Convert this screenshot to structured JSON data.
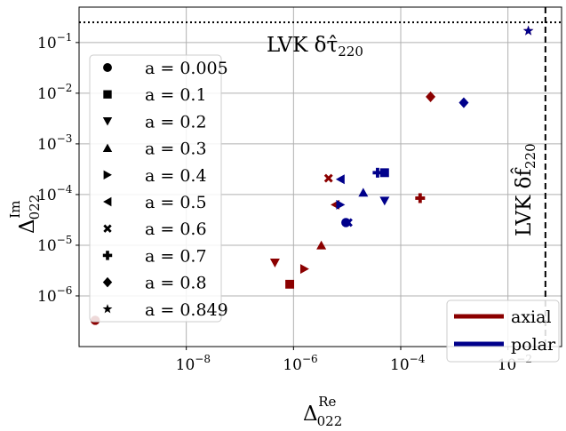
{
  "chart_data": {
    "type": "scatter",
    "title": "",
    "x_scale": "log",
    "y_scale": "log",
    "xlim": [
      1e-10,
      0.1
    ],
    "ylim": [
      1e-07,
      0.5
    ],
    "x_ticks": [
      {
        "value": 1e-08,
        "base": "10",
        "exp": "−8"
      },
      {
        "value": 1e-06,
        "base": "10",
        "exp": "−6"
      },
      {
        "value": 0.0001,
        "base": "10",
        "exp": "−4"
      },
      {
        "value": 0.01,
        "base": "10",
        "exp": "−2"
      }
    ],
    "y_ticks": [
      {
        "value": 1e-06,
        "base": "10",
        "exp": "−6"
      },
      {
        "value": 1e-05,
        "base": "10",
        "exp": "−5"
      },
      {
        "value": 0.0001,
        "base": "10",
        "exp": "−4"
      },
      {
        "value": 0.001,
        "base": "10",
        "exp": "−3"
      },
      {
        "value": 0.01,
        "base": "10",
        "exp": "−2"
      },
      {
        "value": 0.1,
        "base": "10",
        "exp": "−1"
      }
    ],
    "xlabel": {
      "main": "Δ",
      "sub": "022",
      "sup": "Re"
    },
    "ylabel": {
      "main": "Δ",
      "sub": "022",
      "sup": "Im"
    },
    "grid": true,
    "reference_lines": [
      {
        "orientation": "horizontal",
        "value": 0.25,
        "style": "dotted",
        "label": "LVK δτ̂",
        "label_sub": "220"
      },
      {
        "orientation": "vertical",
        "value": 0.05,
        "style": "dashed",
        "label": "LVK δf̂",
        "label_sub": "220"
      }
    ],
    "marker_legend": {
      "placement": "left",
      "entries": [
        {
          "marker": "circle",
          "label": "a = 0.005"
        },
        {
          "marker": "square",
          "label": "a = 0.1"
        },
        {
          "marker": "triangle-down",
          "label": "a = 0.2"
        },
        {
          "marker": "triangle-up",
          "label": "a = 0.3"
        },
        {
          "marker": "triangle-right",
          "label": "a = 0.4"
        },
        {
          "marker": "triangle-left",
          "label": "a = 0.5"
        },
        {
          "marker": "x-filled",
          "label": "a = 0.6"
        },
        {
          "marker": "plus-filled",
          "label": "a = 0.7"
        },
        {
          "marker": "diamond",
          "label": "a = 0.8"
        },
        {
          "marker": "star",
          "label": "a = 0.849"
        }
      ]
    },
    "series_legend": {
      "placement": "bottom-right",
      "entries": [
        {
          "name": "axial",
          "color": "#8b0000"
        },
        {
          "name": "polar",
          "color": "#00008b"
        }
      ]
    },
    "series": [
      {
        "name": "axial",
        "color": "#8b0000",
        "points": [
          {
            "a": 0.005,
            "marker": "circle",
            "x": 2e-10,
            "y": 3.3e-07
          },
          {
            "a": 0.1,
            "marker": "square",
            "x": 8.5e-07,
            "y": 1.7e-06
          },
          {
            "a": 0.2,
            "marker": "triangle-down",
            "x": 4.5e-07,
            "y": 4.5e-06
          },
          {
            "a": 0.3,
            "marker": "triangle-up",
            "x": 3.3e-06,
            "y": 1e-05
          },
          {
            "a": 0.4,
            "marker": "triangle-right",
            "x": 1.6e-06,
            "y": 3.4e-06
          },
          {
            "a": 0.5,
            "marker": "triangle-left",
            "x": 6e-06,
            "y": 6.3e-05
          },
          {
            "a": 0.6,
            "marker": "x-filled",
            "x": 4.5e-06,
            "y": 0.00021
          },
          {
            "a": 0.7,
            "marker": "plus-filled",
            "x": 0.00023,
            "y": 8.5e-05
          },
          {
            "a": 0.8,
            "marker": "diamond",
            "x": 0.00036,
            "y": 0.0085
          },
          {
            "a": 0.849,
            "marker": "star",
            "x": 0.024,
            "y": 0.17
          }
        ]
      },
      {
        "name": "polar",
        "color": "#00008b",
        "points": [
          {
            "a": 0.005,
            "marker": "circle",
            "x": 9.5e-06,
            "y": 2.8e-05
          },
          {
            "a": 0.1,
            "marker": "square",
            "x": 5e-05,
            "y": 0.00027
          },
          {
            "a": 0.2,
            "marker": "triangle-down",
            "x": 5e-05,
            "y": 7.5e-05
          },
          {
            "a": 0.3,
            "marker": "triangle-up",
            "x": 2e-05,
            "y": 0.00011
          },
          {
            "a": 0.4,
            "marker": "triangle-right",
            "x": 7.5e-06,
            "y": 6.3e-05
          },
          {
            "a": 0.5,
            "marker": "triangle-left",
            "x": 7.5e-06,
            "y": 0.0002
          },
          {
            "a": 0.6,
            "marker": "x-filled",
            "x": 1.05e-05,
            "y": 2.8e-05
          },
          {
            "a": 0.7,
            "marker": "plus-filled",
            "x": 3.7e-05,
            "y": 0.00027
          },
          {
            "a": 0.8,
            "marker": "diamond",
            "x": 0.0015,
            "y": 0.0065
          },
          {
            "a": 0.849,
            "marker": "star",
            "x": 0.024,
            "y": 0.17
          }
        ]
      }
    ]
  }
}
